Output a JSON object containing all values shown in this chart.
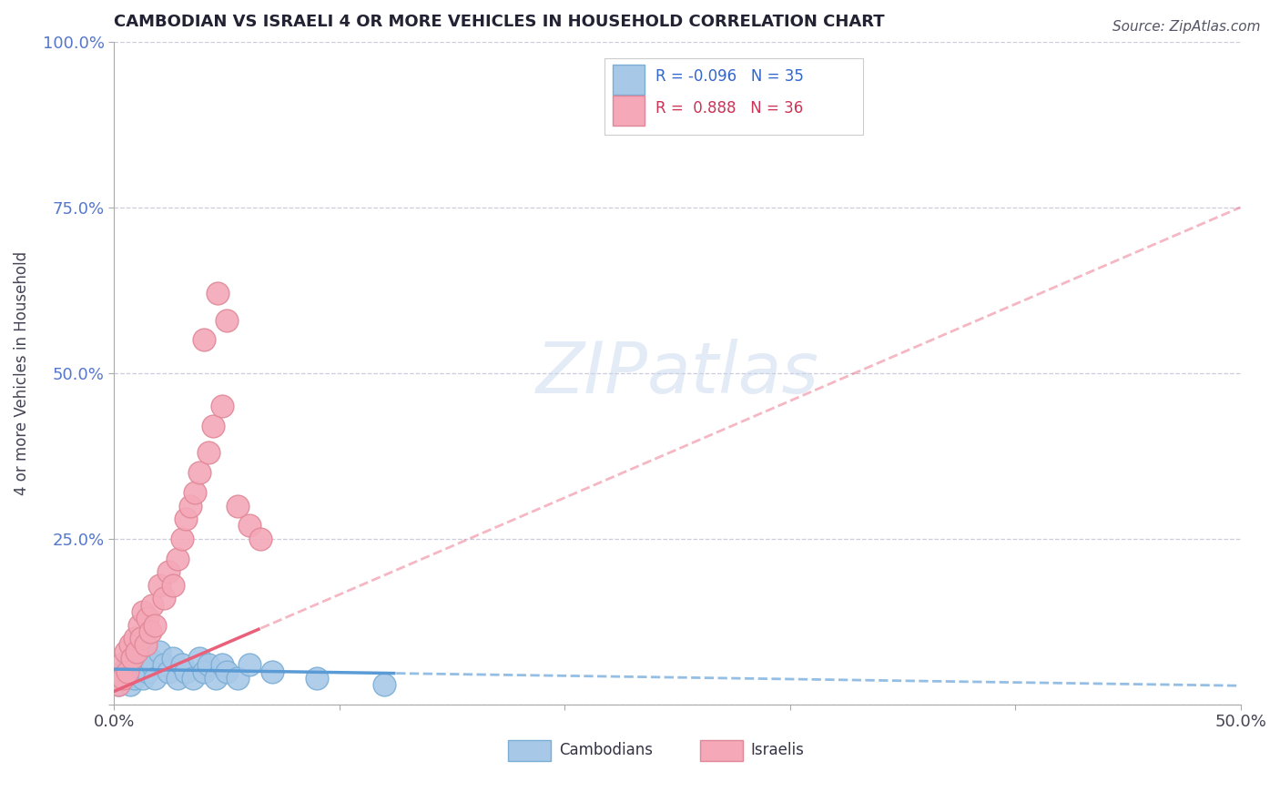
{
  "title": "CAMBODIAN VS ISRAELI 4 OR MORE VEHICLES IN HOUSEHOLD CORRELATION CHART",
  "source": "Source: ZipAtlas.com",
  "ylabel": "4 or more Vehicles in Household",
  "xlim": [
    0,
    0.5
  ],
  "ylim": [
    0,
    1.0
  ],
  "xticks": [
    0.0,
    0.1,
    0.2,
    0.3,
    0.4,
    0.5
  ],
  "xticklabels": [
    "0.0%",
    "",
    "",
    "",
    "",
    "50.0%"
  ],
  "yticks": [
    0.0,
    0.25,
    0.5,
    0.75,
    1.0
  ],
  "yticklabels": [
    "",
    "25.0%",
    "50.0%",
    "75.0%",
    "100.0%"
  ],
  "watermark": "ZIPatlas",
  "legend_r_cambodian": "-0.096",
  "legend_n_cambodian": "35",
  "legend_r_israeli": "0.888",
  "legend_n_israeli": "36",
  "cambodian_color": "#a8c8e8",
  "cambodian_edge_color": "#7aaed4",
  "israeli_color": "#f4a8b8",
  "israeli_edge_color": "#e08898",
  "cambodian_line_color": "#5b9bd5",
  "israeli_line_color": "#e8607a",
  "background_color": "#ffffff",
  "grid_color": "#ccccdd",
  "cambodian_scatter_x": [
    0.002,
    0.004,
    0.005,
    0.006,
    0.007,
    0.008,
    0.009,
    0.01,
    0.011,
    0.012,
    0.013,
    0.014,
    0.015,
    0.016,
    0.017,
    0.018,
    0.02,
    0.022,
    0.024,
    0.026,
    0.028,
    0.03,
    0.032,
    0.035,
    0.038,
    0.04,
    0.042,
    0.045,
    0.048,
    0.05,
    0.055,
    0.06,
    0.07,
    0.09,
    0.12
  ],
  "cambodian_scatter_y": [
    0.03,
    0.05,
    0.04,
    0.06,
    0.03,
    0.05,
    0.04,
    0.07,
    0.05,
    0.06,
    0.04,
    0.08,
    0.05,
    0.07,
    0.06,
    0.04,
    0.08,
    0.06,
    0.05,
    0.07,
    0.04,
    0.06,
    0.05,
    0.04,
    0.07,
    0.05,
    0.06,
    0.04,
    0.06,
    0.05,
    0.04,
    0.06,
    0.05,
    0.04,
    0.03
  ],
  "israeli_scatter_x": [
    0.002,
    0.003,
    0.004,
    0.005,
    0.006,
    0.007,
    0.008,
    0.009,
    0.01,
    0.011,
    0.012,
    0.013,
    0.014,
    0.015,
    0.016,
    0.017,
    0.018,
    0.02,
    0.022,
    0.024,
    0.026,
    0.028,
    0.03,
    0.032,
    0.034,
    0.036,
    0.038,
    0.04,
    0.042,
    0.044,
    0.046,
    0.048,
    0.05,
    0.055,
    0.06,
    0.065
  ],
  "israeli_scatter_y": [
    0.03,
    0.06,
    0.04,
    0.08,
    0.05,
    0.09,
    0.07,
    0.1,
    0.08,
    0.12,
    0.1,
    0.14,
    0.09,
    0.13,
    0.11,
    0.15,
    0.12,
    0.18,
    0.16,
    0.2,
    0.18,
    0.22,
    0.25,
    0.28,
    0.3,
    0.32,
    0.35,
    0.55,
    0.38,
    0.42,
    0.62,
    0.45,
    0.58,
    0.3,
    0.27,
    0.25
  ],
  "cam_line_x_solid_end": 0.125,
  "isr_line_x_solid_end": 0.065
}
